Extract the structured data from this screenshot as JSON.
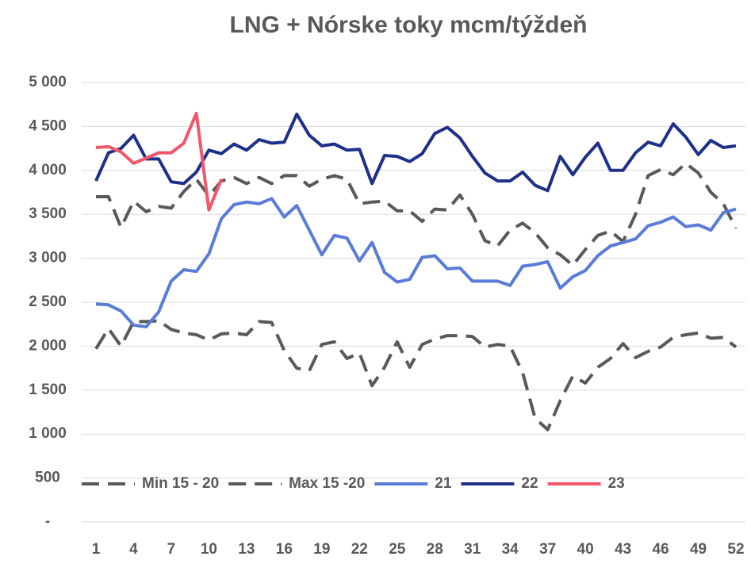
{
  "chart_data": {
    "type": "line",
    "title": "LNG + Nórske toky mcm/týždeň",
    "x": [
      1,
      2,
      3,
      4,
      5,
      6,
      7,
      8,
      9,
      10,
      11,
      12,
      13,
      14,
      15,
      16,
      17,
      18,
      19,
      20,
      21,
      22,
      23,
      24,
      25,
      26,
      27,
      28,
      29,
      30,
      31,
      32,
      33,
      34,
      35,
      36,
      37,
      38,
      39,
      40,
      41,
      42,
      43,
      44,
      45,
      46,
      47,
      48,
      49,
      50,
      51,
      52
    ],
    "xlim": [
      1,
      52
    ],
    "xticks": [
      1,
      4,
      7,
      10,
      13,
      16,
      19,
      22,
      25,
      28,
      31,
      34,
      37,
      40,
      43,
      46,
      49,
      52
    ],
    "ylim": [
      0,
      5000
    ],
    "yticks": [
      {
        "value": 0,
        "label": "-"
      },
      500,
      {
        "value": 1000,
        "label": "1 000"
      },
      {
        "value": 1500,
        "label": "1 500"
      },
      {
        "value": 2000,
        "label": "2 000"
      },
      {
        "value": 2500,
        "label": "2 500"
      },
      {
        "value": 3000,
        "label": "3 000"
      },
      {
        "value": 3500,
        "label": "3 500"
      },
      {
        "value": 4000,
        "label": "4 000"
      },
      {
        "value": 4500,
        "label": "4 500"
      },
      {
        "value": 5000,
        "label": "5 000"
      }
    ],
    "grid": true,
    "legend": "bottom",
    "series": [
      {
        "name": "Min 15 - 20",
        "color": "#595959",
        "dashed": true,
        "values": [
          1970,
          2200,
          2000,
          2280,
          2280,
          2290,
          2190,
          2150,
          2130,
          2070,
          2140,
          2150,
          2130,
          2280,
          2270,
          1950,
          1750,
          1720,
          2020,
          2050,
          1860,
          1920,
          1550,
          1760,
          2050,
          1760,
          2020,
          2080,
          2120,
          2120,
          2110,
          1990,
          2020,
          2000,
          1700,
          1180,
          1050,
          1380,
          1660,
          1580,
          1760,
          1860,
          2030,
          1870,
          1940,
          1990,
          2100,
          2130,
          2150,
          2090,
          2100,
          1990
        ]
      },
      {
        "name": "Max 15 -20",
        "color": "#595959",
        "dashed": true,
        "values": [
          3700,
          3700,
          3350,
          3650,
          3530,
          3590,
          3570,
          3760,
          3900,
          3710,
          3880,
          3920,
          3850,
          3920,
          3850,
          3940,
          3940,
          3820,
          3900,
          3940,
          3900,
          3620,
          3640,
          3650,
          3540,
          3540,
          3420,
          3560,
          3550,
          3720,
          3500,
          3200,
          3140,
          3320,
          3400,
          3290,
          3120,
          3040,
          2920,
          3100,
          3260,
          3310,
          3190,
          3500,
          3940,
          4010,
          3950,
          4080,
          3970,
          3750,
          3620,
          3340
        ]
      },
      {
        "name": "21",
        "color": "#5b7bd8",
        "dashed": false,
        "values": [
          2480,
          2470,
          2400,
          2240,
          2220,
          2390,
          2740,
          2870,
          2850,
          3050,
          3450,
          3610,
          3640,
          3620,
          3680,
          3470,
          3600,
          3320,
          3040,
          3260,
          3230,
          2970,
          3180,
          2840,
          2730,
          2760,
          3010,
          3030,
          2880,
          2890,
          2740,
          2740,
          2740,
          2690,
          2910,
          2930,
          2960,
          2660,
          2790,
          2860,
          3030,
          3140,
          3180,
          3220,
          3370,
          3410,
          3470,
          3360,
          3380,
          3320,
          3520,
          3560
        ]
      },
      {
        "name": "22",
        "color": "#1f3089",
        "dashed": false,
        "values": [
          3880,
          4200,
          4250,
          4400,
          4130,
          4130,
          3870,
          3850,
          3980,
          4230,
          4190,
          4300,
          4230,
          4350,
          4310,
          4320,
          4640,
          4400,
          4280,
          4300,
          4230,
          4240,
          3850,
          4170,
          4160,
          4100,
          4190,
          4420,
          4490,
          4370,
          4160,
          3970,
          3880,
          3880,
          3980,
          3830,
          3770,
          4160,
          3950,
          4150,
          4310,
          4000,
          4000,
          4200,
          4320,
          4280,
          4530,
          4380,
          4180,
          4340,
          4260,
          4280
        ]
      },
      {
        "name": "23",
        "color": "#f2566b",
        "dashed": false,
        "values": [
          4260,
          4270,
          4210,
          4080,
          4140,
          4200,
          4200,
          4310,
          4650,
          3550,
          3900,
          null,
          null,
          null,
          null,
          null,
          null,
          null,
          null,
          null,
          null,
          null,
          null,
          null,
          null,
          null,
          null,
          null,
          null,
          null,
          null,
          null,
          null,
          null,
          null,
          null,
          null,
          null,
          null,
          null,
          null,
          null,
          null,
          null,
          null,
          null,
          null,
          null,
          null,
          null,
          null,
          null
        ]
      }
    ]
  }
}
